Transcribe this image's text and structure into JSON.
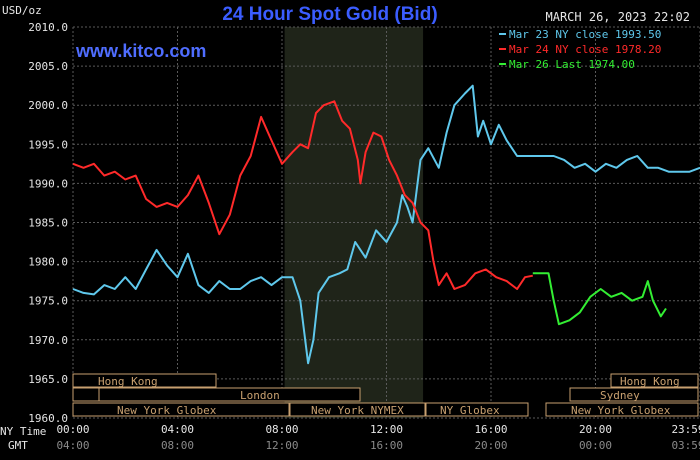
{
  "header": {
    "unit_label": "USD/oz",
    "title": "24 Hour Spot Gold (Bid)",
    "timestamp": "MARCH 26, 2023 22:02",
    "watermark": "www.kitco.com"
  },
  "legend": [
    {
      "label": "Mar 23 NY close 1993.50",
      "color": "#5fc8ec"
    },
    {
      "label": "Mar 24 NY close 1978.20",
      "color": "#ff2a2a"
    },
    {
      "label": "Mar 26 Last 1974.00",
      "color": "#33ee33"
    }
  ],
  "axis": {
    "ny_time_label": "NY Time",
    "gmt_label": "GMT",
    "ny_ticks": [
      "00:00",
      "04:00",
      "08:00",
      "12:00",
      "16:00",
      "20:00",
      "23:59"
    ],
    "gmt_ticks": [
      "04:00",
      "08:00",
      "12:00",
      "16:00",
      "20:00",
      "00:00",
      "03:59"
    ]
  },
  "sessions": {
    "hong_kong_1": "Hong Kong",
    "london": "London",
    "ny_globex_1": "New York Globex",
    "ny_nymex": "New York NYMEX",
    "ny_globex_2": "NY Globex",
    "hong_kong_2": "Hong Kong",
    "sydney": "Sydney",
    "ny_globex_3": "New York Globex"
  },
  "chart_data": {
    "type": "line",
    "title": "24 Hour Spot Gold (Bid)",
    "ylabel": "USD/oz",
    "xlabel": "NY Time",
    "ylim": [
      1960,
      2010
    ],
    "xlim": [
      0,
      24
    ],
    "yticks": [
      "2010.0",
      "2005.0",
      "2000.0",
      "1995.0",
      "1990.0",
      "1985.0",
      "1980.0",
      "1975.0",
      "1970.0",
      "1965.0",
      "1960.0"
    ],
    "grid": true,
    "legend_position": "top-right",
    "highlight_band": [
      8.1,
      13.4
    ],
    "series": [
      {
        "name": "Mar 23 NY close 1993.50",
        "color": "#5fc8ec",
        "points": [
          [
            0,
            1976.5
          ],
          [
            0.4,
            1976
          ],
          [
            0.8,
            1975.8
          ],
          [
            1.2,
            1977
          ],
          [
            1.6,
            1976.5
          ],
          [
            2,
            1978
          ],
          [
            2.4,
            1976.5
          ],
          [
            2.8,
            1979
          ],
          [
            3.2,
            1981.5
          ],
          [
            3.6,
            1979.5
          ],
          [
            4,
            1978
          ],
          [
            4.4,
            1981
          ],
          [
            4.8,
            1977
          ],
          [
            5.2,
            1976
          ],
          [
            5.6,
            1977.5
          ],
          [
            6,
            1976.5
          ],
          [
            6.4,
            1976.5
          ],
          [
            6.8,
            1977.5
          ],
          [
            7.2,
            1978
          ],
          [
            7.6,
            1977
          ],
          [
            8,
            1978
          ],
          [
            8.4,
            1978
          ],
          [
            8.7,
            1975
          ],
          [
            9,
            1967
          ],
          [
            9.2,
            1970
          ],
          [
            9.4,
            1976
          ],
          [
            9.8,
            1978
          ],
          [
            10.2,
            1978.5
          ],
          [
            10.5,
            1979
          ],
          [
            10.8,
            1982.5
          ],
          [
            11.2,
            1980.5
          ],
          [
            11.6,
            1984
          ],
          [
            12,
            1982.5
          ],
          [
            12.4,
            1985
          ],
          [
            12.6,
            1988.5
          ],
          [
            12.8,
            1987
          ],
          [
            13,
            1985
          ],
          [
            13.3,
            1993
          ],
          [
            13.6,
            1994.5
          ],
          [
            14,
            1992
          ],
          [
            14.3,
            1996.5
          ],
          [
            14.6,
            2000
          ],
          [
            15,
            2001.5
          ],
          [
            15.3,
            2002.5
          ],
          [
            15.5,
            1996
          ],
          [
            15.7,
            1998
          ],
          [
            16,
            1995
          ],
          [
            16.3,
            1997.5
          ],
          [
            16.6,
            1995.5
          ],
          [
            17,
            1993.5
          ],
          [
            17.3,
            1993.5
          ],
          [
            18,
            1993.5
          ],
          [
            18.4,
            1993.5
          ],
          [
            18.8,
            1993
          ],
          [
            19.2,
            1992
          ],
          [
            19.6,
            1992.5
          ],
          [
            20,
            1991.5
          ],
          [
            20.4,
            1992.5
          ],
          [
            20.8,
            1992
          ],
          [
            21.2,
            1993
          ],
          [
            21.6,
            1993.5
          ],
          [
            22,
            1992
          ],
          [
            22.4,
            1992
          ],
          [
            22.8,
            1991.5
          ],
          [
            23.2,
            1991.5
          ],
          [
            23.6,
            1991.5
          ],
          [
            24,
            1992
          ]
        ]
      },
      {
        "name": "Mar 24 NY close 1978.20",
        "color": "#ff2a2a",
        "points": [
          [
            0,
            1992.5
          ],
          [
            0.4,
            1992
          ],
          [
            0.8,
            1992.5
          ],
          [
            1.2,
            1991
          ],
          [
            1.6,
            1991.5
          ],
          [
            2,
            1990.5
          ],
          [
            2.4,
            1991
          ],
          [
            2.8,
            1988
          ],
          [
            3.2,
            1987
          ],
          [
            3.6,
            1987.5
          ],
          [
            4,
            1987
          ],
          [
            4.4,
            1988.5
          ],
          [
            4.8,
            1991
          ],
          [
            5.2,
            1987.5
          ],
          [
            5.6,
            1983.5
          ],
          [
            6,
            1986
          ],
          [
            6.4,
            1991
          ],
          [
            6.8,
            1993.5
          ],
          [
            7.2,
            1998.5
          ],
          [
            7.6,
            1995.5
          ],
          [
            8,
            1992.5
          ],
          [
            8.4,
            1994
          ],
          [
            8.7,
            1995
          ],
          [
            9,
            1994.5
          ],
          [
            9.3,
            1999
          ],
          [
            9.6,
            2000
          ],
          [
            10,
            2000.5
          ],
          [
            10.3,
            1998
          ],
          [
            10.6,
            1997
          ],
          [
            10.9,
            1993
          ],
          [
            11,
            1990
          ],
          [
            11.2,
            1994
          ],
          [
            11.5,
            1996.5
          ],
          [
            11.8,
            1996
          ],
          [
            12.1,
            1993
          ],
          [
            12.4,
            1991
          ],
          [
            12.7,
            1988.5
          ],
          [
            13,
            1987.5
          ],
          [
            13.3,
            1985
          ],
          [
            13.6,
            1984
          ],
          [
            13.8,
            1980
          ],
          [
            14,
            1977
          ],
          [
            14.3,
            1978.5
          ],
          [
            14.6,
            1976.5
          ],
          [
            15,
            1977
          ],
          [
            15.4,
            1978.5
          ],
          [
            15.8,
            1979
          ],
          [
            16.2,
            1978
          ],
          [
            16.6,
            1977.5
          ],
          [
            17,
            1976.5
          ],
          [
            17.3,
            1978
          ],
          [
            17.6,
            1978.2
          ]
        ]
      },
      {
        "name": "Mar 26 Last 1974.00",
        "color": "#33ee33",
        "points": [
          [
            17.6,
            1978.5
          ],
          [
            18.2,
            1978.5
          ],
          [
            18.4,
            1975
          ],
          [
            18.6,
            1972
          ],
          [
            19,
            1972.5
          ],
          [
            19.4,
            1973.5
          ],
          [
            19.8,
            1975.5
          ],
          [
            20.2,
            1976.5
          ],
          [
            20.6,
            1975.5
          ],
          [
            21,
            1976
          ],
          [
            21.4,
            1975
          ],
          [
            21.8,
            1975.5
          ],
          [
            22,
            1977.5
          ],
          [
            22.2,
            1975
          ],
          [
            22.5,
            1973
          ],
          [
            22.7,
            1974
          ]
        ]
      }
    ]
  }
}
